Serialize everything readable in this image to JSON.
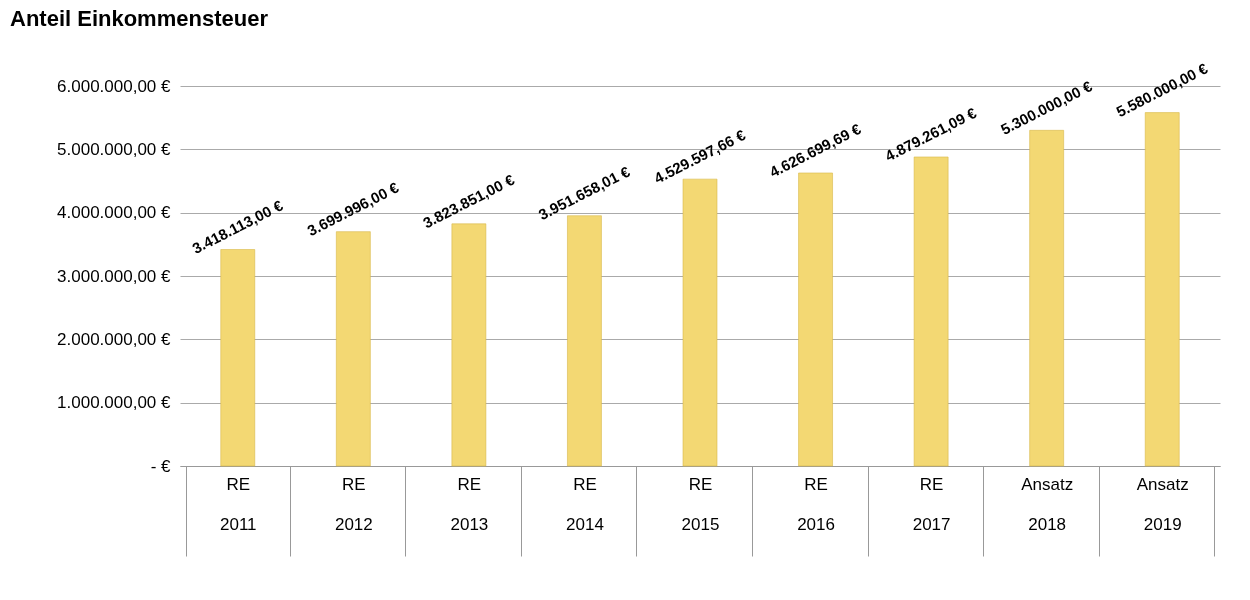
{
  "chart_data": {
    "type": "bar",
    "title": "Anteil Einkommensteuer",
    "categories": [
      "RE 2011",
      "RE 2012",
      "RE 2013",
      "RE 2014",
      "RE 2015",
      "RE 2016",
      "RE 2017",
      "Ansatz 2018",
      "Ansatz 2019"
    ],
    "values": [
      3418113,
      3699996,
      3823851,
      3951658.01,
      4529597.66,
      4626699.69,
      4879261.09,
      5300000,
      5580000
    ],
    "value_labels": [
      "3.418.113,00 €",
      "3.699.996,00 €",
      "3.823.851,00 €",
      "3.951.658,01 €",
      "4.529.597,66 €",
      "4.626.699,69 €",
      "4.879.261,09 €",
      "5.300.000,00 €",
      "5.580.000,00 €"
    ],
    "color": "#f3d873",
    "ylim": [
      0,
      6000000
    ],
    "yticks": [
      {
        "value": 0,
        "label": "-   €"
      },
      {
        "value": 1000000,
        "label": "1.000.000,00 €"
      },
      {
        "value": 2000000,
        "label": "2.000.000,00 €"
      },
      {
        "value": 3000000,
        "label": "3.000.000,00 €"
      },
      {
        "value": 4000000,
        "label": "4.000.000,00 €"
      },
      {
        "value": 5000000,
        "label": "5.000.000,00 €"
      },
      {
        "value": 6000000,
        "label": "6.000.000,00 €"
      }
    ],
    "grid": "y"
  }
}
